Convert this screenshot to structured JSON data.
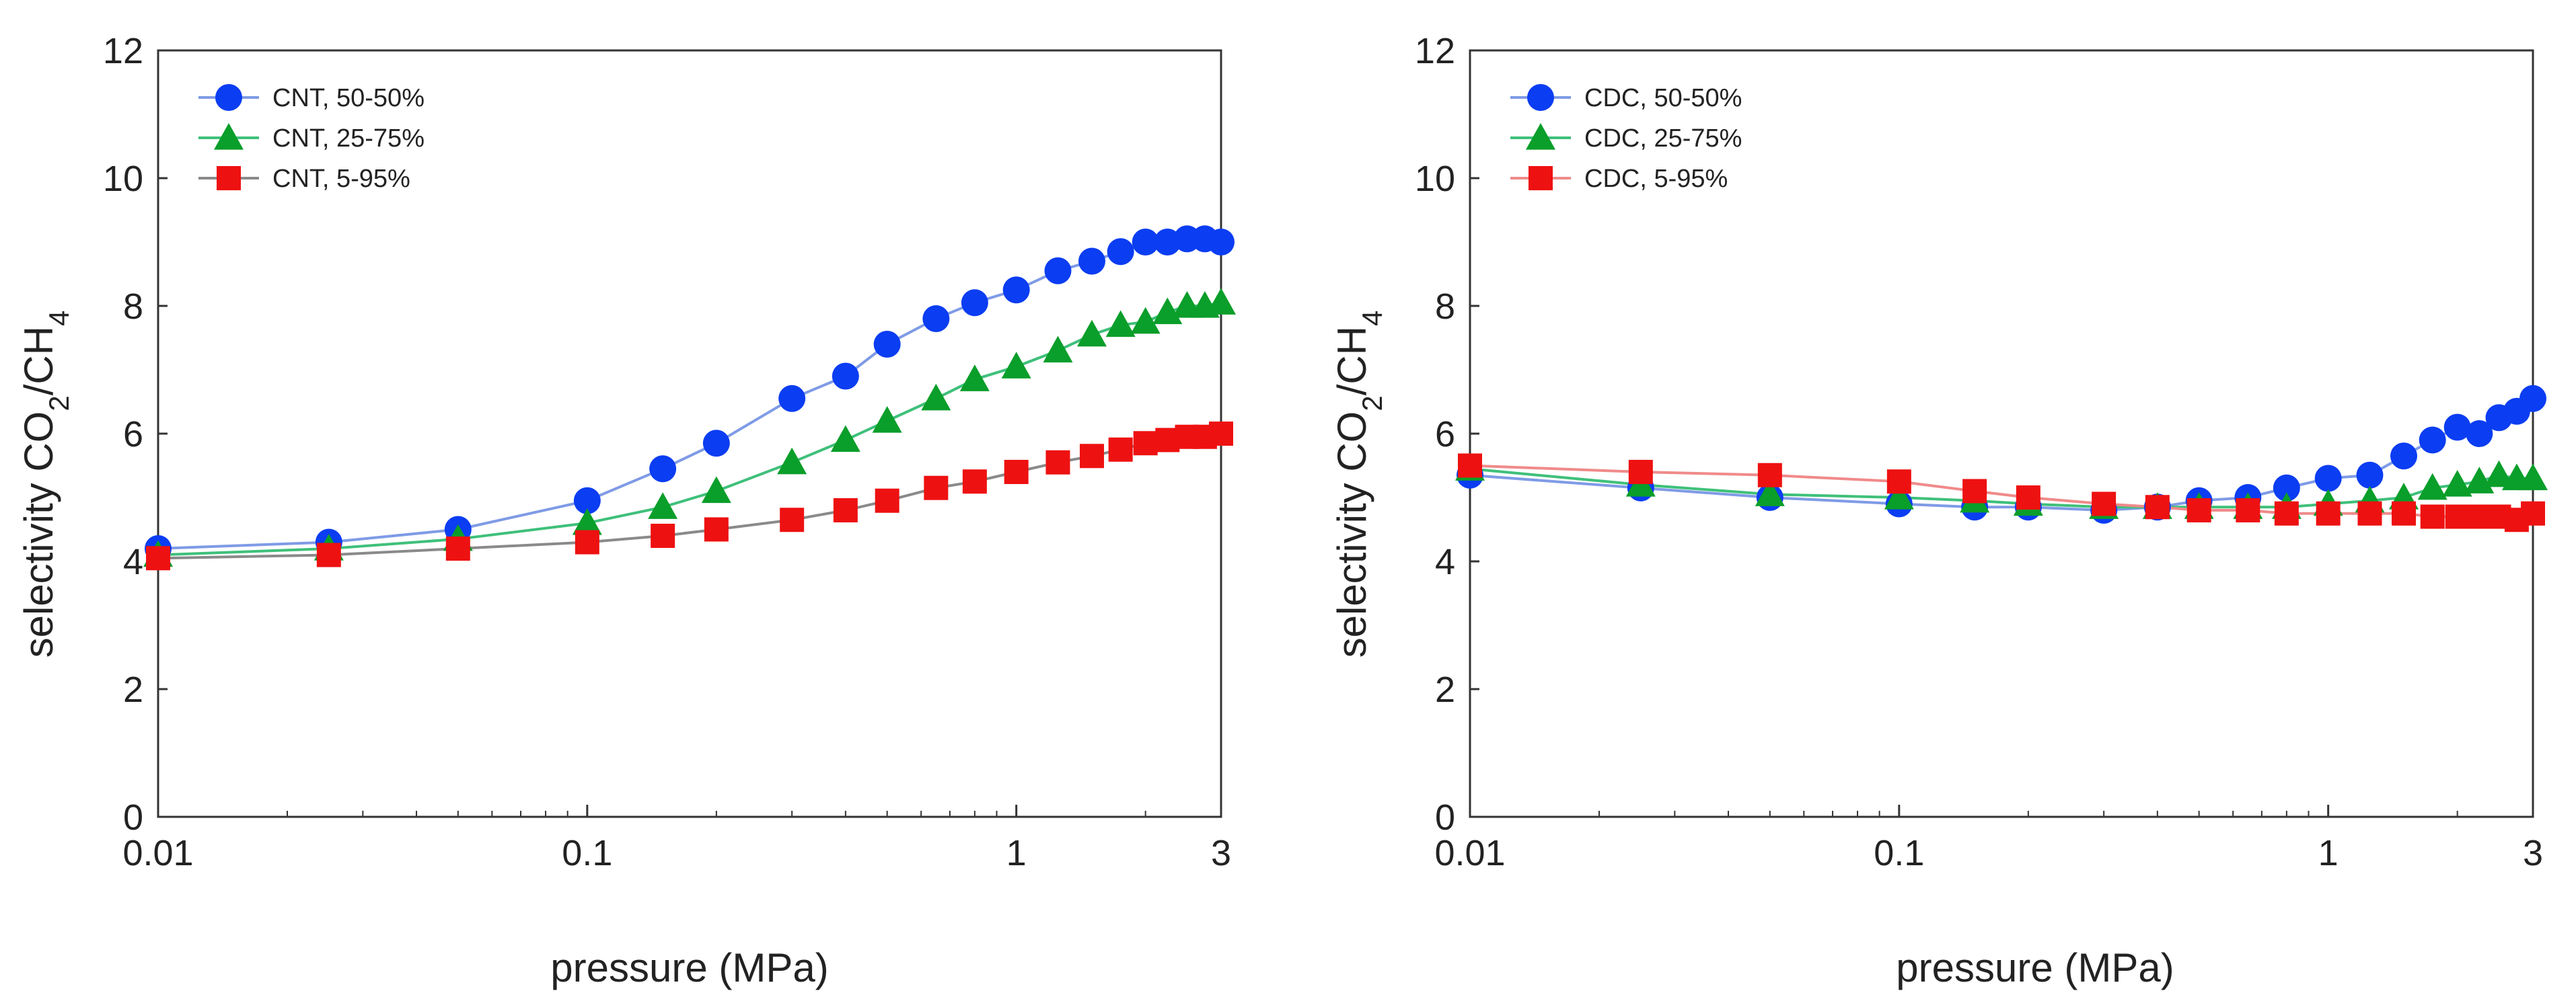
{
  "chart_data": [
    {
      "type": "line",
      "x_scale": "log",
      "xlabel": "pressure (MPa)",
      "ylabel_parts": {
        "main": "selectivity CO",
        "sub1": "2",
        "mid": "/CH",
        "sub2": "4"
      },
      "xlim": [
        0.01,
        3
      ],
      "ylim": [
        0,
        12
      ],
      "x_ticks": [
        0.01,
        0.1,
        1,
        3
      ],
      "x_tick_labels": [
        "0.01",
        "0.1",
        "1",
        "3"
      ],
      "y_ticks": [
        0,
        2,
        4,
        6,
        8,
        10,
        12
      ],
      "y_tick_labels": [
        "0",
        "2",
        "4",
        "6",
        "8",
        "10",
        "12"
      ],
      "grid": false,
      "legend_position": "top-left",
      "series": [
        {
          "name": "CNT, 50-50%",
          "color": "#0b3df2",
          "line_color": "#7f9be6",
          "marker": "circle",
          "x": [
            0.01,
            0.025,
            0.05,
            0.1,
            0.15,
            0.2,
            0.3,
            0.4,
            0.5,
            0.65,
            0.8,
            1.0,
            1.25,
            1.5,
            1.75,
            2.0,
            2.25,
            2.5,
            2.75,
            3.0
          ],
          "y": [
            4.2,
            4.3,
            4.5,
            4.95,
            5.45,
            5.85,
            6.55,
            6.9,
            7.4,
            7.8,
            8.05,
            8.25,
            8.55,
            8.7,
            8.85,
            9.0,
            9.0,
            9.05,
            9.05,
            9.0
          ]
        },
        {
          "name": "CNT, 25-75%",
          "color": "#0a9e2a",
          "line_color": "#3fc07a",
          "marker": "triangle",
          "x": [
            0.01,
            0.025,
            0.05,
            0.1,
            0.15,
            0.2,
            0.3,
            0.4,
            0.5,
            0.65,
            0.8,
            1.0,
            1.25,
            1.5,
            1.75,
            2.0,
            2.25,
            2.5,
            2.75,
            3.0
          ],
          "y": [
            4.1,
            4.2,
            4.35,
            4.6,
            4.85,
            5.1,
            5.55,
            5.9,
            6.2,
            6.55,
            6.85,
            7.05,
            7.3,
            7.55,
            7.7,
            7.75,
            7.9,
            8.0,
            8.0,
            8.05
          ]
        },
        {
          "name": "CNT, 5-95%",
          "color": "#ee1111",
          "line_color": "#8a8a8a",
          "marker": "square",
          "x": [
            0.01,
            0.025,
            0.05,
            0.1,
            0.15,
            0.2,
            0.3,
            0.4,
            0.5,
            0.65,
            0.8,
            1.0,
            1.25,
            1.5,
            1.75,
            2.0,
            2.25,
            2.5,
            2.75,
            3.0
          ],
          "y": [
            4.05,
            4.1,
            4.2,
            4.3,
            4.4,
            4.5,
            4.65,
            4.8,
            4.95,
            5.15,
            5.25,
            5.4,
            5.55,
            5.65,
            5.75,
            5.85,
            5.9,
            5.95,
            5.95,
            6.0
          ]
        }
      ]
    },
    {
      "type": "line",
      "x_scale": "log",
      "xlabel": "pressure (MPa)",
      "ylabel_parts": {
        "main": "selectivity CO",
        "sub1": "2",
        "mid": "/CH",
        "sub2": "4"
      },
      "xlim": [
        0.01,
        3
      ],
      "ylim": [
        0,
        12
      ],
      "x_ticks": [
        0.01,
        0.1,
        1,
        3
      ],
      "x_tick_labels": [
        "0.01",
        "0.1",
        "1",
        "3"
      ],
      "y_ticks": [
        0,
        2,
        4,
        6,
        8,
        10,
        12
      ],
      "y_tick_labels": [
        "0",
        "2",
        "4",
        "6",
        "8",
        "10",
        "12"
      ],
      "grid": false,
      "legend_position": "top-left",
      "series": [
        {
          "name": "CDC, 50-50%",
          "color": "#0b3df2",
          "line_color": "#7f9be6",
          "marker": "circle",
          "x": [
            0.01,
            0.025,
            0.05,
            0.1,
            0.15,
            0.2,
            0.3,
            0.4,
            0.5,
            0.65,
            0.8,
            1.0,
            1.25,
            1.5,
            1.75,
            2.0,
            2.25,
            2.5,
            2.75,
            3.0
          ],
          "y": [
            5.35,
            5.15,
            5.0,
            4.9,
            4.85,
            4.85,
            4.8,
            4.85,
            4.95,
            5.0,
            5.15,
            5.3,
            5.35,
            5.65,
            5.9,
            6.1,
            6.0,
            6.25,
            6.35,
            6.55
          ]
        },
        {
          "name": "CDC, 25-75%",
          "color": "#0a9e2a",
          "line_color": "#3fc07a",
          "marker": "triangle",
          "x": [
            0.01,
            0.025,
            0.05,
            0.1,
            0.15,
            0.2,
            0.3,
            0.4,
            0.5,
            0.65,
            0.8,
            1.0,
            1.25,
            1.5,
            1.75,
            2.0,
            2.25,
            2.5,
            2.75,
            3.0
          ],
          "y": [
            5.45,
            5.2,
            5.05,
            5.0,
            4.95,
            4.9,
            4.85,
            4.85,
            4.85,
            4.85,
            4.85,
            4.9,
            4.95,
            5.0,
            5.15,
            5.2,
            5.25,
            5.35,
            5.3,
            5.3
          ]
        },
        {
          "name": "CDC, 5-95%",
          "color": "#ee1111",
          "line_color": "#f08a8a",
          "marker": "square",
          "x": [
            0.01,
            0.025,
            0.05,
            0.1,
            0.15,
            0.2,
            0.3,
            0.4,
            0.5,
            0.65,
            0.8,
            1.0,
            1.25,
            1.5,
            1.75,
            2.0,
            2.25,
            2.5,
            2.75,
            3.0
          ],
          "y": [
            5.5,
            5.4,
            5.35,
            5.25,
            5.1,
            5.0,
            4.9,
            4.85,
            4.8,
            4.8,
            4.75,
            4.75,
            4.75,
            4.75,
            4.7,
            4.7,
            4.7,
            4.7,
            4.65,
            4.75
          ]
        }
      ]
    }
  ]
}
